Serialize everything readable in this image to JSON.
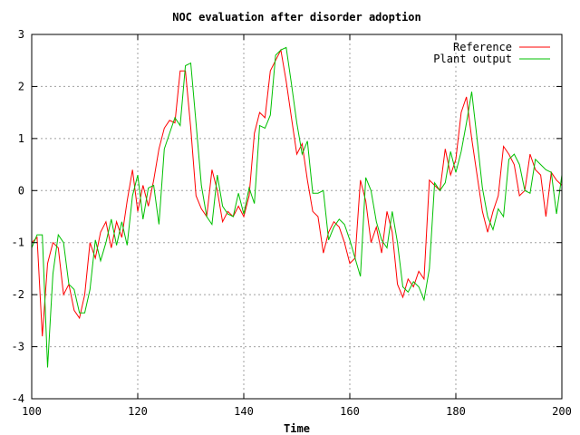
{
  "chart_data": {
    "type": "line",
    "title": "NOC evaluation after disorder adoption",
    "xlabel": "Time",
    "ylabel": "",
    "xlim": [
      100,
      200
    ],
    "ylim": [
      -4,
      3
    ],
    "xticks": [
      100,
      120,
      140,
      160,
      180,
      200
    ],
    "yticks": [
      -4,
      -3,
      -2,
      -1,
      0,
      1,
      2,
      3
    ],
    "grid": true,
    "legend_position": "top-right",
    "series": [
      {
        "name": "Reference",
        "color": "#ff0000",
        "x": [
          100,
          101,
          102,
          103,
          104,
          105,
          106,
          107,
          108,
          109,
          110,
          111,
          112,
          113,
          114,
          115,
          116,
          117,
          118,
          119,
          120,
          121,
          122,
          123,
          124,
          125,
          126,
          127,
          128,
          129,
          130,
          131,
          132,
          133,
          134,
          135,
          136,
          137,
          138,
          139,
          140,
          141,
          142,
          143,
          144,
          145,
          146,
          147,
          148,
          149,
          150,
          151,
          152,
          153,
          154,
          155,
          156,
          157,
          158,
          159,
          160,
          161,
          162,
          163,
          164,
          165,
          166,
          167,
          168,
          169,
          170,
          171,
          172,
          173,
          174,
          175,
          176,
          177,
          178,
          179,
          180,
          181,
          182,
          183,
          184,
          185,
          186,
          187,
          188,
          189,
          190,
          191,
          192,
          193,
          194,
          195,
          196,
          197,
          198,
          199,
          200
        ],
        "values": [
          -1.0,
          -0.9,
          -2.8,
          -1.4,
          -1.0,
          -1.1,
          -2.0,
          -1.8,
          -2.3,
          -2.45,
          -2.0,
          -1.0,
          -1.3,
          -0.8,
          -0.6,
          -1.1,
          -0.6,
          -0.9,
          -0.2,
          0.4,
          -0.4,
          0.1,
          -0.3,
          0.2,
          0.8,
          1.2,
          1.35,
          1.3,
          2.3,
          2.3,
          1.2,
          -0.1,
          -0.35,
          -0.5,
          0.4,
          0.0,
          -0.6,
          -0.4,
          -0.5,
          -0.3,
          -0.5,
          -0.1,
          1.1,
          1.5,
          1.4,
          2.3,
          2.5,
          2.7,
          2.1,
          1.4,
          0.7,
          0.9,
          0.2,
          -0.4,
          -0.5,
          -1.2,
          -0.8,
          -0.6,
          -0.7,
          -1.0,
          -1.4,
          -1.3,
          0.2,
          -0.2,
          -1.0,
          -0.7,
          -1.2,
          -0.4,
          -0.8,
          -1.8,
          -2.05,
          -1.7,
          -1.85,
          -1.55,
          -1.7,
          0.2,
          0.1,
          0.0,
          0.8,
          0.3,
          0.6,
          1.5,
          1.8,
          1.0,
          0.3,
          -0.4,
          -0.8,
          -0.4,
          -0.1,
          0.85,
          0.7,
          0.5,
          -0.1,
          0.0,
          0.7,
          0.4,
          0.3,
          -0.5,
          0.35,
          0.2,
          0.1
        ]
      },
      {
        "name": "Plant output",
        "color": "#00c000",
        "x": [
          100,
          101,
          102,
          103,
          104,
          105,
          106,
          107,
          108,
          109,
          110,
          111,
          112,
          113,
          114,
          115,
          116,
          117,
          118,
          119,
          120,
          121,
          122,
          123,
          124,
          125,
          126,
          127,
          128,
          129,
          130,
          131,
          132,
          133,
          134,
          135,
          136,
          137,
          138,
          139,
          140,
          141,
          142,
          143,
          144,
          145,
          146,
          147,
          148,
          149,
          150,
          151,
          152,
          153,
          154,
          155,
          156,
          157,
          158,
          159,
          160,
          161,
          162,
          163,
          164,
          165,
          166,
          167,
          168,
          169,
          170,
          171,
          172,
          173,
          174,
          175,
          176,
          177,
          178,
          179,
          180,
          181,
          182,
          183,
          184,
          185,
          186,
          187,
          188,
          189,
          190,
          191,
          192,
          193,
          194,
          195,
          196,
          197,
          198,
          199,
          200
        ],
        "values": [
          -1.1,
          -0.85,
          -0.85,
          -3.4,
          -1.6,
          -0.85,
          -1.0,
          -1.8,
          -1.9,
          -2.35,
          -2.35,
          -1.9,
          -0.95,
          -1.35,
          -1.0,
          -0.55,
          -1.05,
          -0.6,
          -1.05,
          -0.1,
          0.3,
          -0.55,
          0.05,
          0.1,
          -0.65,
          0.8,
          1.1,
          1.4,
          1.25,
          2.4,
          2.45,
          1.3,
          0.1,
          -0.5,
          -0.65,
          0.3,
          -0.3,
          -0.45,
          -0.5,
          -0.05,
          -0.45,
          0.05,
          -0.25,
          1.25,
          1.2,
          1.45,
          2.6,
          2.7,
          2.75,
          2.05,
          1.3,
          0.7,
          0.95,
          -0.05,
          -0.05,
          0.0,
          -0.95,
          -0.7,
          -0.55,
          -0.65,
          -0.95,
          -1.3,
          -1.65,
          0.25,
          0.0,
          -0.6,
          -0.95,
          -1.1,
          -0.4,
          -1.0,
          -1.85,
          -1.95,
          -1.75,
          -1.85,
          -2.1,
          -1.5,
          0.15,
          0.0,
          0.15,
          0.75,
          0.35,
          0.75,
          1.3,
          1.9,
          1.0,
          0.05,
          -0.5,
          -0.75,
          -0.35,
          -0.5,
          0.6,
          0.7,
          0.5,
          0.0,
          -0.05,
          0.6,
          0.5,
          0.4,
          0.35,
          -0.45,
          0.3
        ]
      }
    ]
  }
}
